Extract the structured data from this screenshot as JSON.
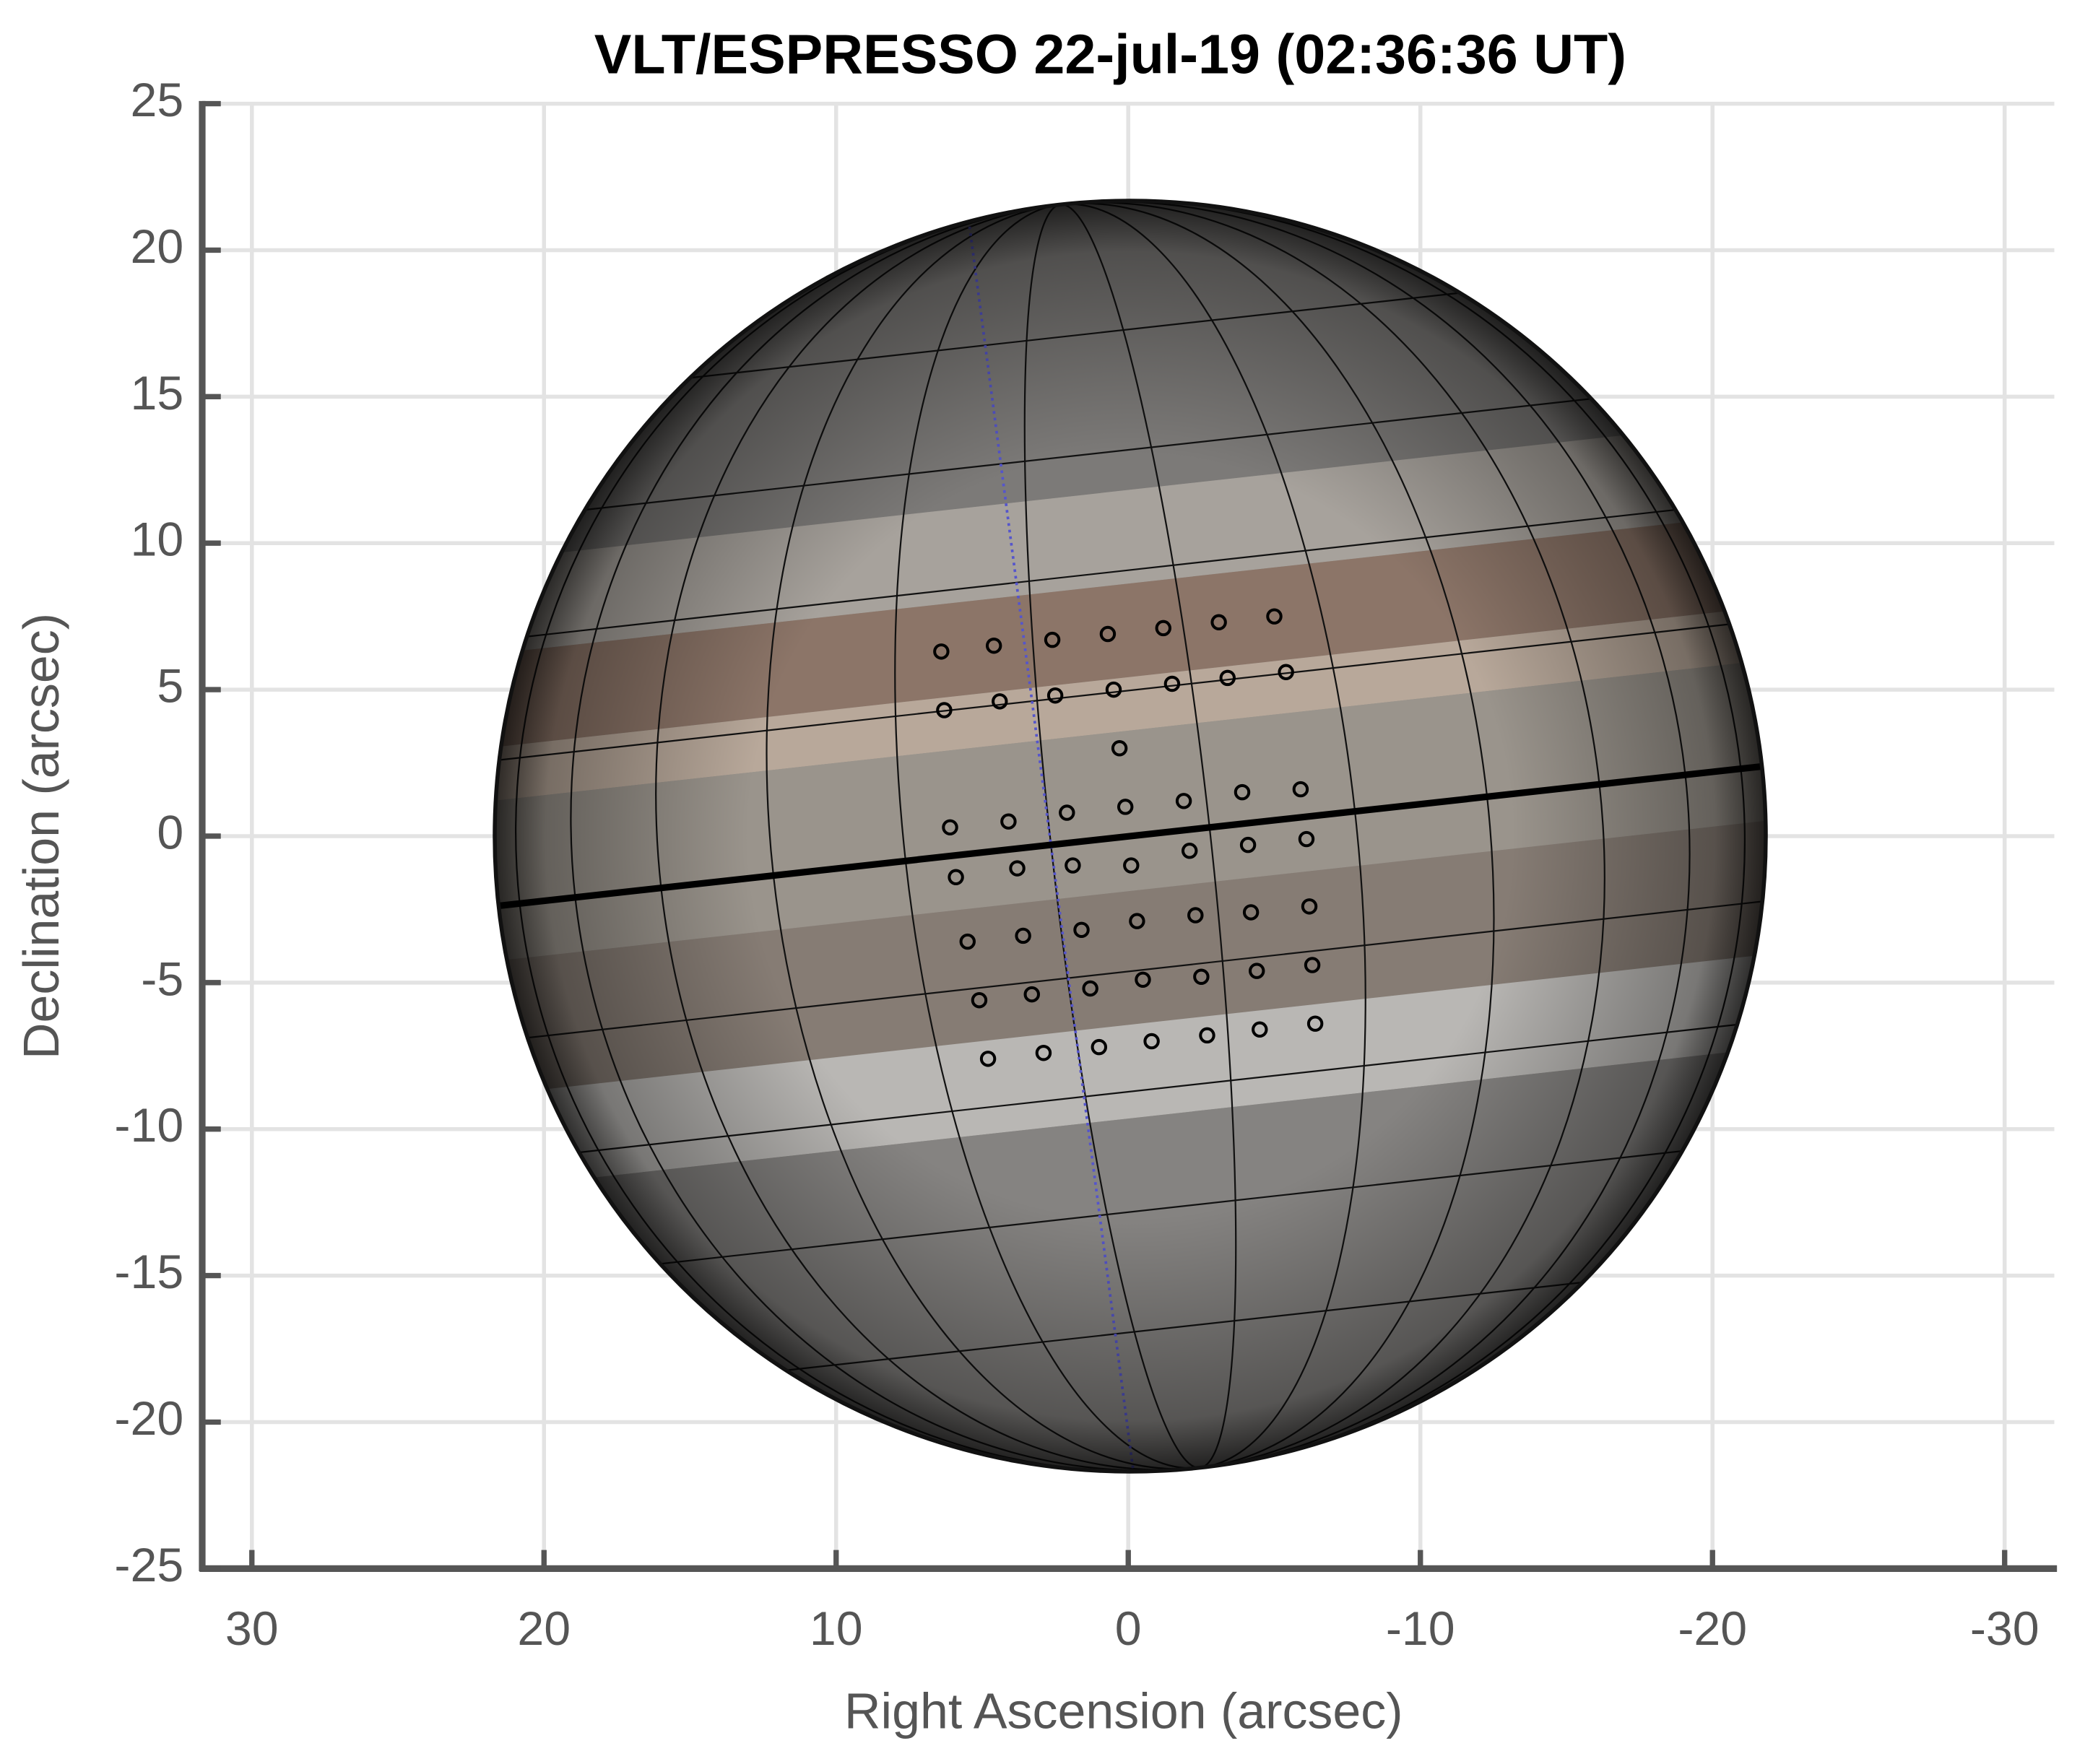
{
  "chart_data": {
    "type": "scatter",
    "title": "VLT/ESPRESSO 22-jul-19 (02:36:36 UT)",
    "x_label": "Right Ascension (arcsec)",
    "y_label": "Declination (arcsec)",
    "x": [
      6.4,
      4.6,
      2.6,
      0.7,
      -1.2,
      -3.1,
      -5.0,
      6.3,
      4.4,
      2.5,
      0.5,
      -1.5,
      -3.4,
      -5.4,
      0.3,
      6.1,
      4.1,
      2.1,
      0.1,
      -1.9,
      -3.9,
      -5.9,
      5.9,
      3.8,
      1.9,
      -0.1,
      -2.1,
      -4.1,
      -6.1,
      5.5,
      3.6,
      1.6,
      -0.3,
      -2.3,
      -4.2,
      -6.2,
      5.1,
      3.3,
      1.3,
      -0.5,
      -2.5,
      -4.4,
      -6.3,
      4.8,
      2.9,
      1.0,
      -0.8,
      -2.7,
      -4.5,
      -6.4
    ],
    "values": [
      6.3,
      6.5,
      6.7,
      6.9,
      7.1,
      7.3,
      7.5,
      4.3,
      4.6,
      4.8,
      5.0,
      5.2,
      5.4,
      5.6,
      3.0,
      0.3,
      0.5,
      0.8,
      1.0,
      1.2,
      1.5,
      1.6,
      -1.4,
      -1.1,
      -1.0,
      -1.0,
      -0.5,
      -0.3,
      -0.1,
      -3.6,
      -3.4,
      -3.2,
      -2.9,
      -2.7,
      -2.6,
      -2.4,
      -5.6,
      -5.4,
      -5.2,
      -4.9,
      -4.8,
      -4.6,
      -4.4,
      -7.6,
      -7.4,
      -7.2,
      -7.0,
      -6.8,
      -6.6,
      -6.4
    ],
    "color": "#000000",
    "xlim": [
      31.7,
      -31.7
    ],
    "ylim": [
      -25,
      25
    ],
    "xticks": [
      30,
      20,
      10,
      0,
      -10,
      -20,
      -30
    ],
    "yticks": [
      25,
      20,
      15,
      10,
      5,
      0,
      -5,
      -10,
      -15,
      -20,
      -25
    ],
    "grid": true
  }
}
